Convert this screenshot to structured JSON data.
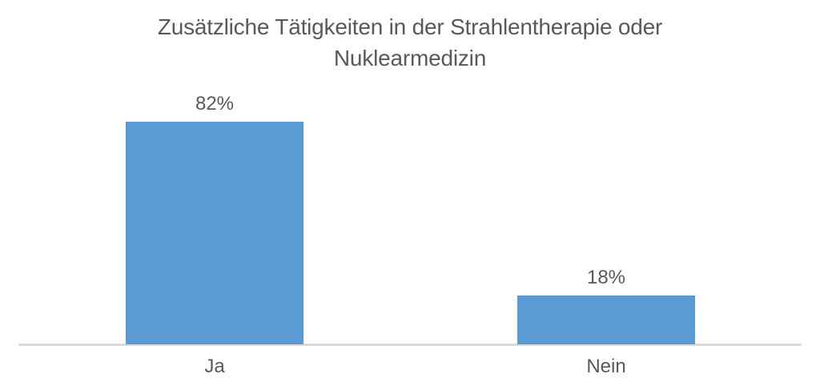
{
  "chart_data": {
    "type": "bar",
    "title": "Zusätzliche Tätigkeiten in der Strahlentherapie oder Nuklearmedizin",
    "title_lines": [
      "Zusätzliche Tätigkeiten in der Strahlentherapie oder",
      "Nuklearmedizin"
    ],
    "categories": [
      "Ja",
      "Nein"
    ],
    "values": [
      82,
      18
    ],
    "data_labels": [
      "82%",
      "18%"
    ],
    "xlabel": "",
    "ylabel": "",
    "ylim": [
      0,
      100
    ],
    "grid": false,
    "legend": false,
    "bar_color": "#5B9BD5",
    "axis_line_color": "#D9D9D9",
    "text_color": "#595959"
  }
}
